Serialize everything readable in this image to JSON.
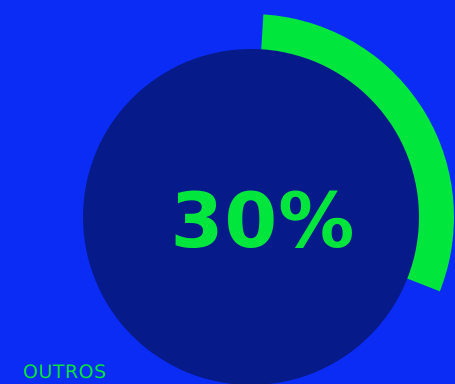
{
  "colors": {
    "background": "#0a2cf5",
    "track": "#061a8a",
    "accent": "#00e63c"
  },
  "chart_data": {
    "type": "pie",
    "categories": [
      "OUTROS"
    ],
    "values": [
      30
    ],
    "unit": "%",
    "value_label": "30%"
  }
}
